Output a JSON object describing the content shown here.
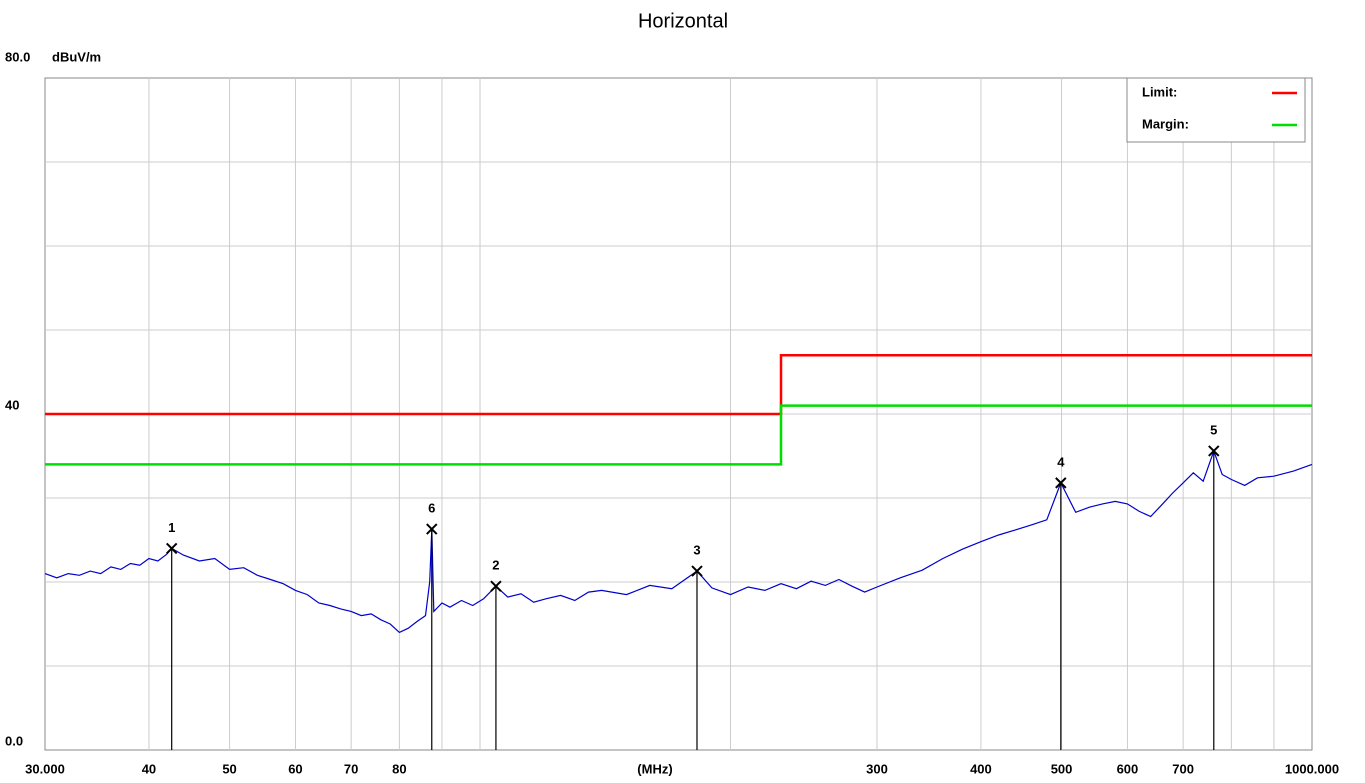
{
  "chart_data": {
    "type": "line",
    "title": "Horizontal",
    "y_label": "dBuV/m",
    "x_label": "(MHz)",
    "log_x": true,
    "grid": true,
    "xlim": [
      30,
      1000
    ],
    "ylim": [
      0,
      80
    ],
    "yticks": [
      {
        "value": 0,
        "label": "0.0"
      },
      40,
      {
        "value": 80,
        "label": "80.0"
      }
    ],
    "ygrid": [
      10,
      20,
      30,
      40,
      50,
      60,
      70
    ],
    "xticks": [
      {
        "value": 30,
        "label": "30.000"
      },
      40,
      50,
      60,
      70,
      80,
      300,
      400,
      500,
      600,
      700,
      {
        "value": 1000,
        "label": "1000.000"
      }
    ],
    "xgrid": [
      40,
      50,
      60,
      70,
      80,
      90,
      100,
      200,
      300,
      400,
      500,
      600,
      700,
      800,
      900
    ],
    "legend": "upper right",
    "series": [
      {
        "name": "Limit:",
        "color": "#ff0000",
        "x": [
          30,
          230,
          230,
          1000
        ],
        "values": [
          40,
          40,
          47,
          47
        ]
      },
      {
        "name": "Margin:",
        "color": "#00dd00",
        "x": [
          30,
          230,
          230,
          1000
        ],
        "values": [
          34,
          34,
          41,
          41
        ]
      }
    ],
    "trace": {
      "color": "#0000cc",
      "x": [
        30,
        31,
        32,
        33,
        34,
        35,
        36,
        37,
        38,
        39,
        40,
        41,
        42,
        42.6,
        44,
        46,
        48,
        50,
        52,
        54,
        56,
        58,
        60,
        62,
        64,
        66,
        68,
        70,
        72,
        74,
        76,
        78,
        80,
        82,
        84,
        86,
        87,
        87.5,
        88,
        90,
        92,
        95,
        98,
        101,
        104.5,
        108,
        112,
        116,
        120,
        125,
        130,
        135,
        140,
        150,
        160,
        170,
        182.3,
        190,
        200,
        210,
        220,
        230,
        240,
        250,
        260,
        270,
        280,
        290,
        300,
        320,
        340,
        360,
        380,
        400,
        420,
        440,
        460,
        480,
        499,
        520,
        540,
        560,
        580,
        600,
        620,
        640,
        660,
        680,
        700,
        720,
        740,
        762,
        780,
        800,
        830,
        860,
        900,
        950,
        1000
      ],
      "values": [
        21,
        20.5,
        21,
        20.8,
        21.3,
        21,
        21.8,
        21.5,
        22.2,
        22,
        22.8,
        22.5,
        23.3,
        24,
        23.2,
        22.5,
        22.8,
        21.5,
        21.7,
        20.8,
        20.3,
        19.8,
        19,
        18.5,
        17.5,
        17.2,
        16.8,
        16.5,
        16,
        16.2,
        15.5,
        15,
        14,
        14.5,
        15.3,
        16,
        20,
        26.3,
        16.5,
        17.5,
        17,
        17.8,
        17.2,
        18,
        19.5,
        18.2,
        18.6,
        17.6,
        18,
        18.4,
        17.8,
        18.8,
        19,
        18.5,
        19.6,
        19.2,
        21.3,
        19.3,
        18.5,
        19.4,
        19,
        19.8,
        19.2,
        20.1,
        19.6,
        20.3,
        19.5,
        18.8,
        19.4,
        20.5,
        21.4,
        22.8,
        23.9,
        24.8,
        25.6,
        26.2,
        26.8,
        27.4,
        31.8,
        28.3,
        28.9,
        29.3,
        29.6,
        29.3,
        28.4,
        27.8,
        29.2,
        30.6,
        31.8,
        33,
        32,
        35.6,
        32.8,
        32.2,
        31.5,
        32.4,
        32.6,
        33.2,
        34
      ]
    },
    "markers": {
      "labels": [
        "1",
        "2",
        "3",
        "4",
        "5",
        "6"
      ],
      "x": [
        42.6,
        104.5,
        182.3,
        499,
        762,
        87.5
      ],
      "values": [
        24,
        19.5,
        21.3,
        31.8,
        35.6,
        26.3
      ]
    }
  }
}
